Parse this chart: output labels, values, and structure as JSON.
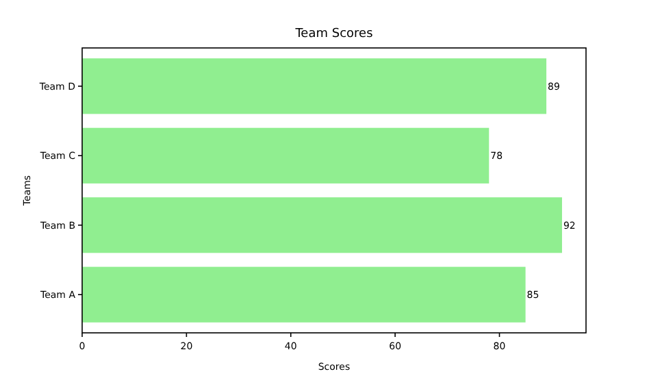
{
  "chart_data": {
    "type": "bar",
    "orientation": "horizontal",
    "title": "Team Scores",
    "xlabel": "Scores",
    "ylabel": "Teams",
    "categories": [
      "Team D",
      "Team C",
      "Team B",
      "Team A"
    ],
    "values": [
      89,
      78,
      92,
      85
    ],
    "color": "#90ee90",
    "data_labels": true,
    "xlim": [
      0,
      96.6
    ],
    "xticks": [
      0,
      20,
      40,
      60,
      80
    ]
  }
}
